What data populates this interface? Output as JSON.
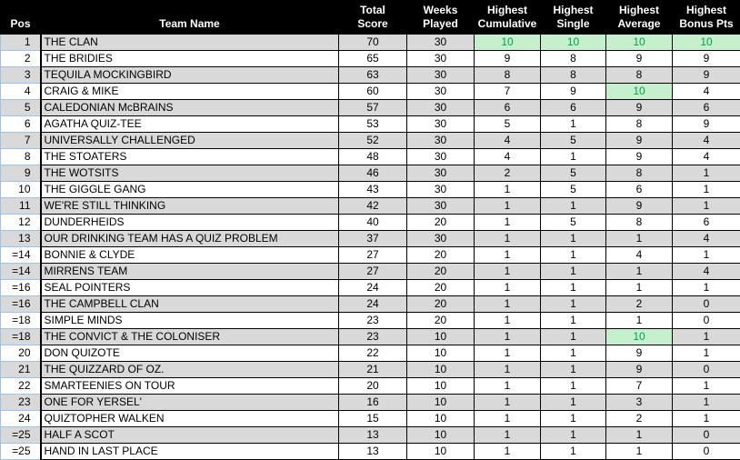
{
  "colors": {
    "header_bg": "#000000",
    "header_text": "#FFFFFF",
    "stripe_gray": "#D9D9D9",
    "grid_border": "#000000",
    "pos_cell_border": "#9DC3E6",
    "highlight_green_bg": "#C6EFCE",
    "highlight_green_text": "#00A14B"
  },
  "table": {
    "columns": [
      {
        "key": "pos",
        "label": "Pos"
      },
      {
        "key": "team",
        "label": "Team Name"
      },
      {
        "key": "total",
        "label": "Total\nScore"
      },
      {
        "key": "weeks",
        "label": "Weeks\nPlayed"
      },
      {
        "key": "cumulative",
        "label": "Highest\nCumulative"
      },
      {
        "key": "single",
        "label": "Highest\nSingle"
      },
      {
        "key": "average",
        "label": "Highest\nAverage"
      },
      {
        "key": "bonus",
        "label": "Highest\nBonus Pts"
      }
    ],
    "rows": [
      {
        "pos": "1",
        "team": "THE CLAN",
        "total": 70,
        "weeks": 30,
        "cumulative": 10,
        "single": 10,
        "average": 10,
        "bonus": 10,
        "highlight": [
          "cumulative",
          "single",
          "average",
          "bonus"
        ]
      },
      {
        "pos": "2",
        "team": "THE BRIDIES",
        "total": 65,
        "weeks": 30,
        "cumulative": 9,
        "single": 8,
        "average": 9,
        "bonus": 9,
        "highlight": []
      },
      {
        "pos": "3",
        "team": "TEQUILA MOCKINGBIRD",
        "total": 63,
        "weeks": 30,
        "cumulative": 8,
        "single": 8,
        "average": 8,
        "bonus": 9,
        "highlight": []
      },
      {
        "pos": "4",
        "team": "CRAIG & MIKE",
        "total": 60,
        "weeks": 30,
        "cumulative": 7,
        "single": 9,
        "average": 10,
        "bonus": 4,
        "highlight": [
          "average"
        ]
      },
      {
        "pos": "5",
        "team": "CALEDONIAN McBRAINS",
        "total": 57,
        "weeks": 30,
        "cumulative": 6,
        "single": 6,
        "average": 9,
        "bonus": 6,
        "highlight": []
      },
      {
        "pos": "6",
        "team": "AGATHA QUIZ-TEE",
        "total": 53,
        "weeks": 30,
        "cumulative": 5,
        "single": 1,
        "average": 8,
        "bonus": 9,
        "highlight": []
      },
      {
        "pos": "7",
        "team": "UNIVERSALLY CHALLENGED",
        "total": 52,
        "weeks": 30,
        "cumulative": 4,
        "single": 5,
        "average": 9,
        "bonus": 4,
        "highlight": []
      },
      {
        "pos": "8",
        "team": "THE STOATERS",
        "total": 48,
        "weeks": 30,
        "cumulative": 4,
        "single": 1,
        "average": 9,
        "bonus": 4,
        "highlight": []
      },
      {
        "pos": "9",
        "team": "THE WOTSITS",
        "total": 46,
        "weeks": 30,
        "cumulative": 2,
        "single": 5,
        "average": 8,
        "bonus": 1,
        "highlight": []
      },
      {
        "pos": "10",
        "team": "THE GIGGLE GANG",
        "total": 43,
        "weeks": 30,
        "cumulative": 1,
        "single": 5,
        "average": 6,
        "bonus": 1,
        "highlight": []
      },
      {
        "pos": "11",
        "team": "WE'RE STILL THINKING",
        "total": 42,
        "weeks": 30,
        "cumulative": 1,
        "single": 1,
        "average": 9,
        "bonus": 1,
        "highlight": []
      },
      {
        "pos": "12",
        "team": "DUNDERHEIDS",
        "total": 40,
        "weeks": 20,
        "cumulative": 1,
        "single": 5,
        "average": 8,
        "bonus": 6,
        "highlight": []
      },
      {
        "pos": "13",
        "team": "OUR DRINKING TEAM HAS A QUIZ PROBLEM",
        "total": 37,
        "weeks": 30,
        "cumulative": 1,
        "single": 1,
        "average": 1,
        "bonus": 4,
        "highlight": []
      },
      {
        "pos": "=14",
        "team": "BONNIE & CLYDE",
        "total": 27,
        "weeks": 20,
        "cumulative": 1,
        "single": 1,
        "average": 4,
        "bonus": 1,
        "highlight": []
      },
      {
        "pos": "=14",
        "team": "MIRRENS TEAM",
        "total": 27,
        "weeks": 20,
        "cumulative": 1,
        "single": 1,
        "average": 1,
        "bonus": 4,
        "highlight": []
      },
      {
        "pos": "=16",
        "team": "SEAL POINTERS",
        "total": 24,
        "weeks": 20,
        "cumulative": 1,
        "single": 1,
        "average": 1,
        "bonus": 1,
        "highlight": []
      },
      {
        "pos": "=16",
        "team": "THE CAMPBELL CLAN",
        "total": 24,
        "weeks": 20,
        "cumulative": 1,
        "single": 1,
        "average": 2,
        "bonus": 0,
        "highlight": []
      },
      {
        "pos": "=18",
        "team": "SIMPLE MINDS",
        "total": 23,
        "weeks": 20,
        "cumulative": 1,
        "single": 1,
        "average": 1,
        "bonus": 0,
        "highlight": []
      },
      {
        "pos": "=18",
        "team": "THE CONVICT & THE COLONISER",
        "total": 23,
        "weeks": 10,
        "cumulative": 1,
        "single": 1,
        "average": 10,
        "bonus": 1,
        "highlight": [
          "average"
        ]
      },
      {
        "pos": "20",
        "team": "DON QUIZOTE",
        "total": 22,
        "weeks": 10,
        "cumulative": 1,
        "single": 1,
        "average": 9,
        "bonus": 1,
        "highlight": []
      },
      {
        "pos": "21",
        "team": "THE QUIZZARD OF OZ.",
        "total": 21,
        "weeks": 10,
        "cumulative": 1,
        "single": 1,
        "average": 9,
        "bonus": 0,
        "highlight": []
      },
      {
        "pos": "22",
        "team": "SMARTEENIES ON TOUR",
        "total": 20,
        "weeks": 10,
        "cumulative": 1,
        "single": 1,
        "average": 7,
        "bonus": 1,
        "highlight": []
      },
      {
        "pos": "23",
        "team": "ONE FOR YERSEL'",
        "total": 16,
        "weeks": 10,
        "cumulative": 1,
        "single": 1,
        "average": 3,
        "bonus": 1,
        "highlight": []
      },
      {
        "pos": "24",
        "team": "QUIZTOPHER WALKEN",
        "total": 15,
        "weeks": 10,
        "cumulative": 1,
        "single": 1,
        "average": 2,
        "bonus": 1,
        "highlight": []
      },
      {
        "pos": "=25",
        "team": "HALF A SCOT",
        "total": 13,
        "weeks": 10,
        "cumulative": 1,
        "single": 1,
        "average": 1,
        "bonus": 0,
        "highlight": []
      },
      {
        "pos": "=25",
        "team": "HAND IN LAST PLACE",
        "total": 13,
        "weeks": 10,
        "cumulative": 1,
        "single": 1,
        "average": 1,
        "bonus": 0,
        "highlight": []
      }
    ]
  }
}
